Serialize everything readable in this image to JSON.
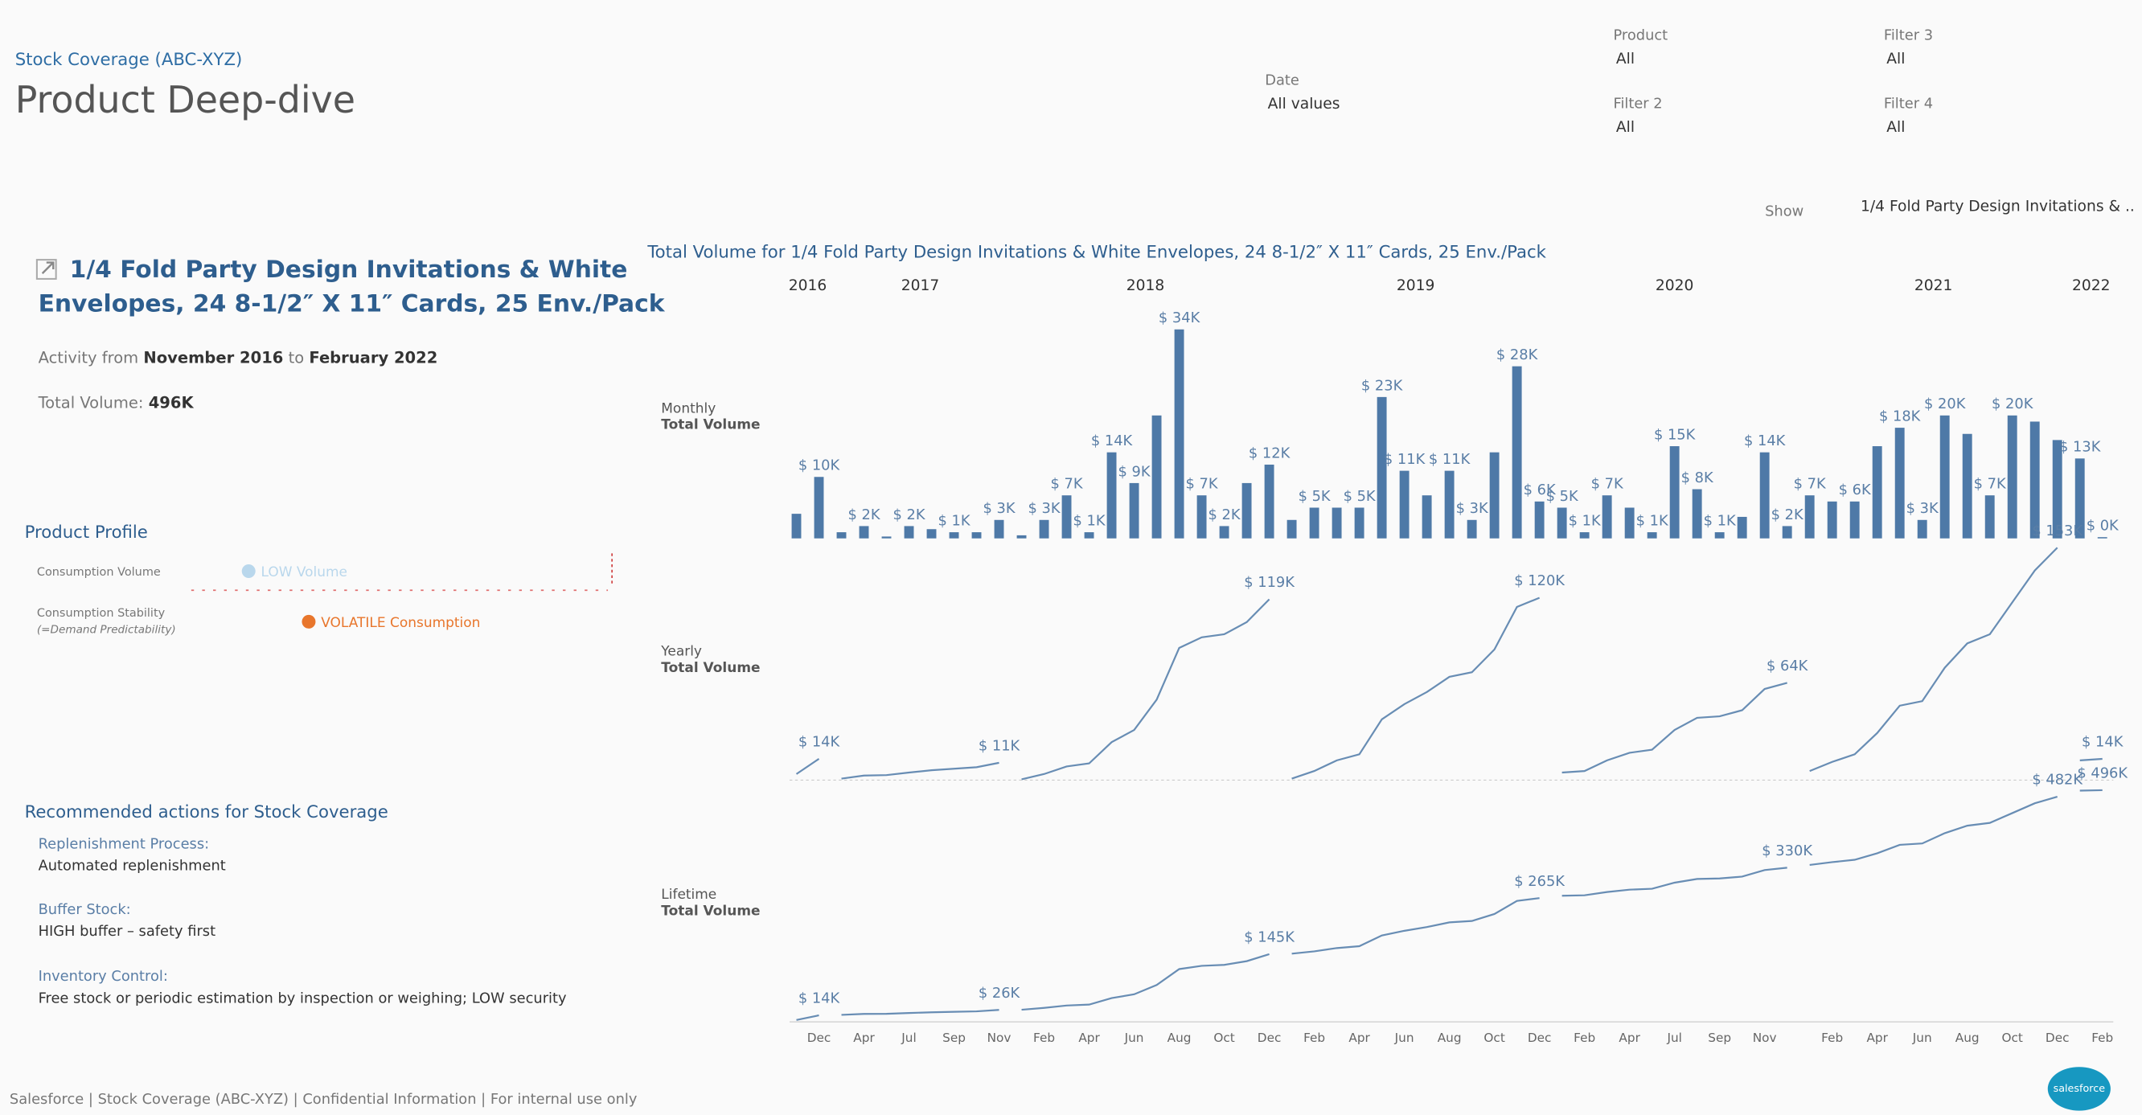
{
  "header": {
    "breadcrumb": "Stock Coverage (ABC-XYZ)",
    "title": "Product Deep-dive"
  },
  "filters": [
    {
      "label": "Product",
      "value": "All"
    },
    {
      "label": "Filter 3",
      "value": "All"
    },
    {
      "label": "Date",
      "value": "All values"
    },
    {
      "label": "Filter 2",
      "value": "All"
    },
    {
      "label": "Filter 4",
      "value": "All"
    }
  ],
  "show": {
    "label": "Show",
    "value": "1/4 Fold Party Design Invitations & .."
  },
  "product": {
    "title_lines": [
      "1/4 Fold Party Design Invitations & White",
      "Envelopes, 24 8-1/2″ X 11″ Cards, 25 Env./Pack"
    ],
    "activity_from": "Activity from",
    "start": "November 2016",
    "activity_to": "to",
    "end": "February 2022",
    "total_label": "Total Volume:",
    "total": "496K"
  },
  "profile": {
    "title": "Product Profile",
    "volume_label": "Consumption Volume",
    "volume_value": "LOW Volume",
    "stability_label": "Consumption Stability",
    "stability_sublabel": "(=Demand Predictability)",
    "stability_value": "VOLATILE Consumption"
  },
  "actions": {
    "title": "Recommended actions for Stock Coverage",
    "items": [
      {
        "label": "Replenishment Process:",
        "value": "Automated replenishment"
      },
      {
        "label": "Buffer Stock:",
        "value": "HIGH buffer – safety first"
      },
      {
        "label": "Inventory Control:",
        "value": "Free stock or periodic estimation by inspection or weighing; LOW security"
      }
    ]
  },
  "footer": "Salesforce | Stock Coverage (ABC-XYZ) | Confidential Information | For internal use only",
  "logo": "salesforce",
  "chart_data": [
    {
      "type": "bar",
      "title": "Total Volume for 1/4 Fold Party Design Invitations & White Envelopes, 24 8-1/2″ X 11″ Cards, 25 Env./Pack",
      "row_label": "Monthly",
      "row_sublabel": "Total Volume",
      "years": [
        "2016",
        "2017",
        "2018",
        "2019",
        "2020",
        "2021",
        "2022"
      ],
      "color": "#4e79a7",
      "ylim": [
        0,
        36
      ],
      "values": [
        4,
        10,
        1,
        2,
        0.3,
        2,
        1.5,
        1,
        1,
        3,
        0.5,
        3,
        7,
        1,
        14,
        9,
        20,
        34,
        7,
        2,
        9,
        12,
        3,
        5,
        5,
        5,
        23,
        11,
        7,
        11,
        3,
        14,
        28,
        6,
        5,
        1,
        7,
        5,
        1,
        15,
        8,
        1,
        3.5,
        14,
        2,
        7,
        6,
        6,
        15,
        18,
        3,
        20,
        17,
        7,
        20,
        19,
        16,
        13,
        0.2
      ],
      "value_labels": [
        null,
        "$ 10K",
        null,
        "$ 2K",
        null,
        "$ 2K",
        null,
        "$ 1K",
        null,
        "$ 3K",
        null,
        "$ 3K",
        "$ 7K",
        "$ 1K",
        "$ 14K",
        "$ 9K",
        null,
        "$ 34K",
        "$ 7K",
        "$ 2K",
        null,
        "$ 12K",
        null,
        "$ 5K",
        null,
        "$ 5K",
        "$ 23K",
        "$ 11K",
        null,
        "$ 11K",
        "$ 3K",
        null,
        "$ 28K",
        "$ 6K",
        "$ 5K",
        "$ 1K",
        "$ 7K",
        null,
        "$ 1K",
        "$ 15K",
        "$ 8K",
        "$ 1K",
        null,
        "$ 14K",
        "$ 2K",
        "$ 7K",
        null,
        "$ 6K",
        null,
        "$ 18K",
        "$ 3K",
        "$ 20K",
        null,
        "$ 7K",
        "$ 20K",
        null,
        null,
        "$ 13K",
        "$ 0K"
      ]
    },
    {
      "type": "line",
      "row_label": "Yearly",
      "row_sublabel": "Total Volume",
      "color": "#4e79a7",
      "ylim": [
        0,
        160
      ],
      "values": [
        4,
        14,
        1,
        3,
        3.3,
        5,
        6.5,
        7.5,
        8.5,
        11.4,
        0.5,
        4,
        9,
        11,
        25,
        33,
        53,
        87,
        94,
        96,
        104,
        119,
        1,
        6,
        13,
        17,
        40,
        50,
        58,
        68,
        71,
        86,
        114,
        120,
        5,
        6,
        13,
        18,
        20,
        33,
        41,
        42,
        46,
        60,
        64,
        6,
        12,
        17,
        31,
        49,
        52,
        74,
        90,
        96,
        117,
        138,
        153,
        13,
        14
      ],
      "value_labels": [
        null,
        "$ 14K",
        null,
        null,
        null,
        null,
        null,
        null,
        null,
        "$ 11K",
        null,
        null,
        null,
        null,
        null,
        null,
        null,
        null,
        null,
        null,
        null,
        "$ 119K",
        null,
        null,
        null,
        null,
        null,
        null,
        null,
        null,
        null,
        null,
        null,
        "$ 120K",
        null,
        null,
        null,
        null,
        null,
        null,
        null,
        null,
        null,
        null,
        "$ 64K",
        null,
        null,
        null,
        null,
        null,
        null,
        null,
        null,
        null,
        null,
        null,
        "$ 153K",
        null,
        "$ 14K"
      ]
    },
    {
      "type": "line",
      "row_label": "Lifetime",
      "row_sublabel": "Total Volume",
      "color": "#4e79a7",
      "ylim": [
        0,
        500
      ],
      "categories": [
        null,
        "Dec",
        null,
        "Apr",
        null,
        "Jul",
        null,
        "Sep",
        null,
        "Nov",
        null,
        "Feb",
        null,
        "Apr",
        null,
        "Jun",
        null,
        "Aug",
        null,
        "Oct",
        null,
        "Dec",
        null,
        "Feb",
        null,
        "Apr",
        null,
        "Jun",
        null,
        "Aug",
        null,
        "Oct",
        null,
        "Dec",
        null,
        "Feb",
        null,
        "Apr",
        null,
        "Jul",
        null,
        "Sep",
        null,
        "Nov",
        null,
        null,
        "Feb",
        null,
        "Apr",
        null,
        "Jun",
        null,
        "Aug",
        null,
        "Oct",
        null,
        "Dec",
        null,
        "Feb"
      ],
      "values": [
        4,
        14,
        15,
        17,
        17.3,
        19,
        20.5,
        21.5,
        22.5,
        25.6,
        26,
        30,
        35,
        37,
        51,
        59,
        79,
        113,
        120,
        122,
        130,
        145,
        146,
        151,
        158,
        162,
        185,
        195,
        203,
        213,
        216,
        231,
        259,
        265,
        270,
        271,
        278,
        283,
        285,
        298,
        306,
        307,
        311,
        325,
        330,
        336,
        342,
        347,
        361,
        379,
        382,
        404,
        420,
        426,
        447,
        468,
        482,
        495,
        496
      ],
      "value_labels": [
        null,
        "$ 14K",
        null,
        null,
        null,
        null,
        null,
        null,
        null,
        "$ 26K",
        null,
        null,
        null,
        null,
        null,
        null,
        null,
        null,
        null,
        null,
        null,
        "$ 145K",
        null,
        null,
        null,
        null,
        null,
        null,
        null,
        null,
        null,
        null,
        null,
        "$ 265K",
        null,
        null,
        null,
        null,
        null,
        null,
        null,
        null,
        null,
        null,
        "$ 330K",
        null,
        null,
        null,
        null,
        null,
        null,
        null,
        null,
        null,
        null,
        null,
        "$ 482K",
        null,
        "$ 496K"
      ]
    }
  ]
}
